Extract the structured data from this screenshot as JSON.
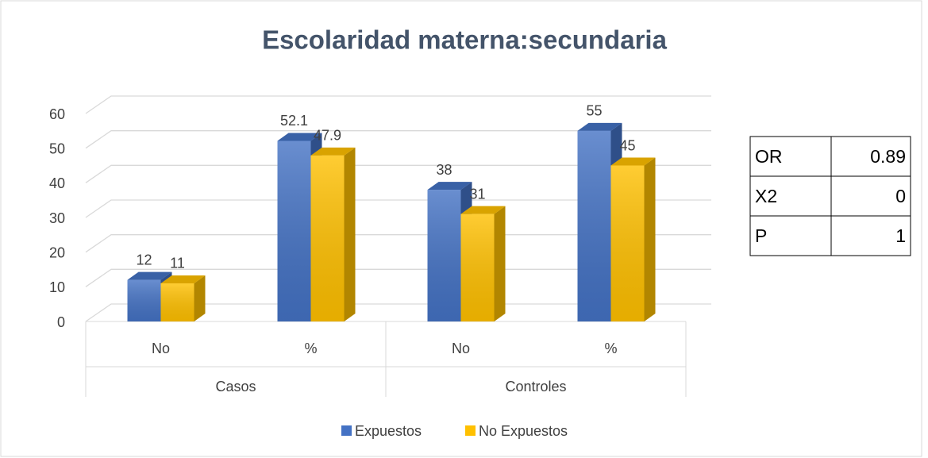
{
  "chart_data": {
    "type": "bar3d",
    "title": "Escolaridad materna:secundaria",
    "categories": [
      "No",
      "%",
      "No",
      "%"
    ],
    "groups": [
      "Casos",
      "Controles"
    ],
    "series": [
      {
        "name": "Expuestos",
        "color": "#4472c4",
        "values": [
          12,
          52.1,
          38,
          55
        ]
      },
      {
        "name": "No Expuestos",
        "color": "#ffc000",
        "values": [
          11,
          47.9,
          31,
          45
        ]
      }
    ],
    "ylim": [
      0,
      60
    ],
    "yticks": [
      0,
      10,
      20,
      30,
      40,
      50,
      60
    ],
    "grid": true,
    "legend": "bottom"
  },
  "table": {
    "rows": [
      [
        "OR",
        "0.89"
      ],
      [
        "X2",
        "0"
      ],
      [
        "P",
        "1"
      ]
    ]
  }
}
